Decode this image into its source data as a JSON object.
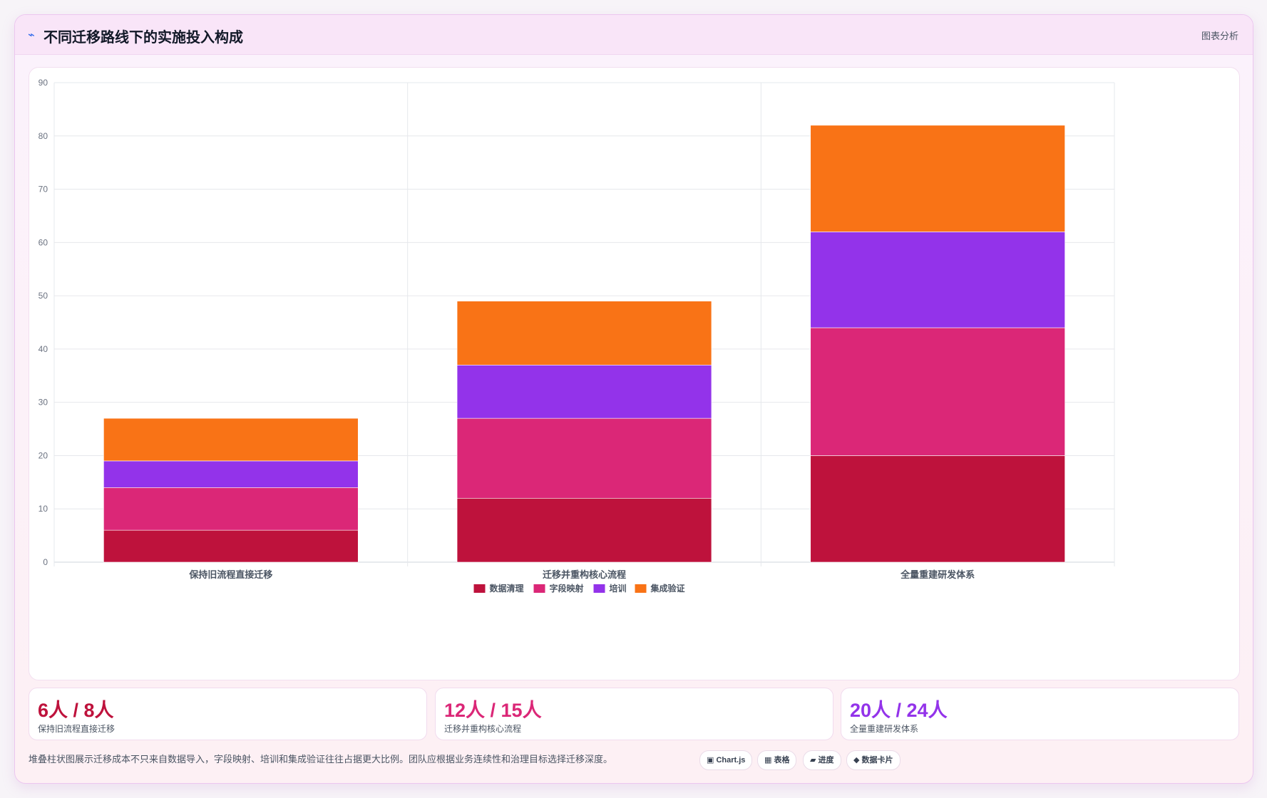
{
  "header": {
    "icon": "lightning-icon",
    "title": "不同迁移路线下的实施投入构成",
    "action_label": "图表分析"
  },
  "chart_data": {
    "type": "bar",
    "stacked": true,
    "categories": [
      "保持旧流程直接迁移",
      "迁移并重构核心流程",
      "全量重建研发体系"
    ],
    "series": [
      {
        "name": "数据清理",
        "values": [
          6,
          12,
          20
        ],
        "color": "#be123c"
      },
      {
        "name": "字段映射",
        "values": [
          8,
          15,
          24
        ],
        "color": "#db2777"
      },
      {
        "name": "培训",
        "values": [
          5,
          10,
          18
        ],
        "color": "#9333ea"
      },
      {
        "name": "集成验证",
        "values": [
          8,
          12,
          20
        ],
        "color": "#f97316"
      }
    ],
    "ylim": [
      0,
      90
    ],
    "yticks": [
      0,
      10,
      20,
      30,
      40,
      50,
      60,
      70,
      80,
      90
    ],
    "grid": true,
    "legend_position": "bottom"
  },
  "stats": [
    {
      "value": "6人 / 8人",
      "label": "保持旧流程直接迁移",
      "color": "#be123c"
    },
    {
      "value": "12人 / 15人",
      "label": "迁移并重构核心流程",
      "color": "#db2777"
    },
    {
      "value": "20人 / 24人",
      "label": "全量重建研发体系",
      "color": "#9333ea"
    }
  ],
  "footer": {
    "note": "堆叠柱状图展示迁移成本不只来自数据导入，字段映射、培训和集成验证往往占据更大比例。团队应根据业务连续性和治理目标选择迁移深度。",
    "tags": [
      {
        "icon": "chart-square-icon",
        "label": "▣ Chart.js"
      },
      {
        "icon": "table-icon",
        "label": "▦ 表格"
      },
      {
        "icon": "progress-icon",
        "label": "▰ 进度"
      },
      {
        "icon": "diamond-icon",
        "label": "◆ 数据卡片"
      }
    ]
  }
}
